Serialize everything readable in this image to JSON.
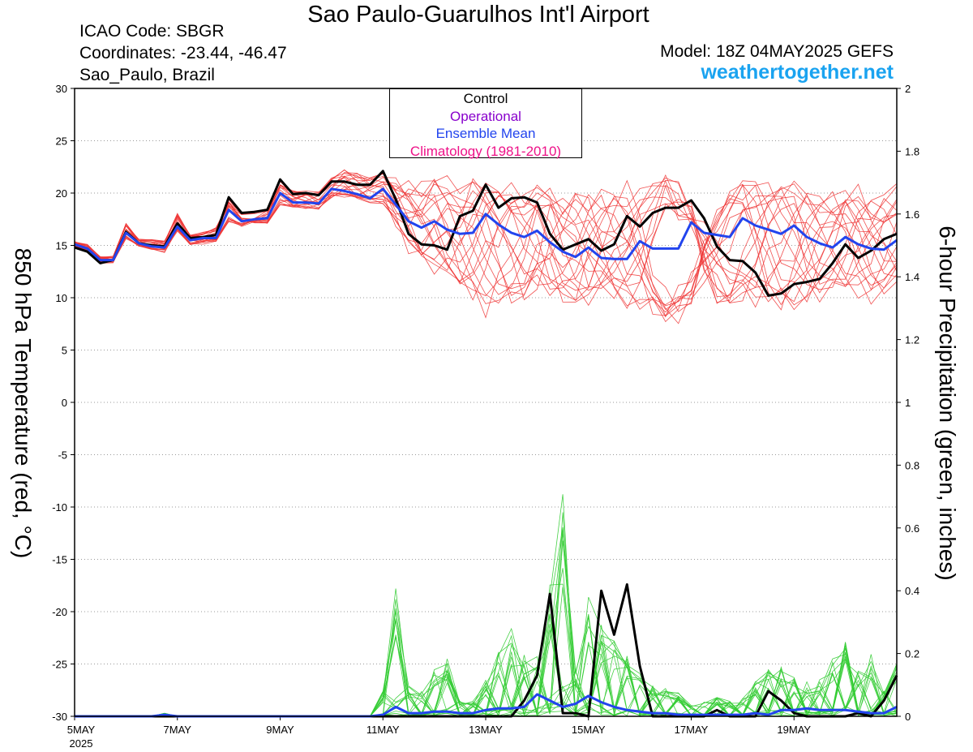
{
  "header": {
    "title": "Sao Paulo-Guarulhos Int'l Airport",
    "icao": "ICAO Code: SBGR",
    "coordinates": "Coordinates: -23.44, -46.47",
    "location": "Sao_Paulo, Brazil",
    "model": "Model: 18Z 04MAY2025 GEFS",
    "website": "weathertogether.net"
  },
  "legend": {
    "control": "Control",
    "operational": "Operational",
    "ensemble_mean": "Ensemble Mean",
    "climatology": "Climatology (1981-2010)"
  },
  "colors": {
    "control": "#000000",
    "operational": "#8800cc",
    "ensemble_mean": "#2244ee",
    "climatology": "#ee1188",
    "members_temp": "#ee3333",
    "members_precip": "#33cc33",
    "website": "#1aa3f0"
  },
  "chart_data": {
    "type": "line",
    "xlabel": "",
    "ylabel": "850 hPa Temperature (red, °C)",
    "y2label": "6-hour Precipitation (green, inches)",
    "x_start": "5MAY 2025",
    "x_step_hours": 6,
    "xlim_days": [
      5.0,
      21.0
    ],
    "ylim": [
      -30,
      30
    ],
    "y2lim": [
      0,
      2
    ],
    "x_ticks": [
      "5MAY",
      "7MAY",
      "9MAY",
      "11MAY",
      "13MAY",
      "15MAY",
      "17MAY",
      "19MAY"
    ],
    "x_year_label": "2025",
    "y_ticks": [
      30,
      25,
      20,
      15,
      10,
      5,
      0,
      -5,
      -10,
      -15,
      -20,
      -25,
      -30
    ],
    "y2_ticks": [
      "2",
      "1.8",
      "1.6",
      "1.4",
      "1.2",
      "1",
      "0.8",
      "0.6",
      "0.4",
      "0.2",
      "0"
    ],
    "grid": "horizontal dotted",
    "legend_position": "top-center",
    "series": [
      {
        "name": "Control",
        "role": "temperature",
        "color": "#000000",
        "width": 3,
        "values": [
          14.8,
          14.4,
          13.3,
          13.6,
          16.3,
          15.2,
          15.0,
          14.9,
          17.1,
          15.7,
          15.8,
          16.0,
          19.6,
          18.1,
          18.2,
          18.4,
          21.3,
          19.9,
          20.0,
          19.8,
          21.1,
          21.1,
          20.8,
          20.8,
          22.1,
          19.4,
          16.1,
          15.1,
          15.0,
          14.6,
          17.8,
          18.3,
          20.8,
          18.6,
          19.5,
          19.6,
          19.1,
          16.1,
          14.6,
          15.1,
          15.6,
          14.5,
          15.1,
          17.8,
          16.8,
          18.1,
          18.6,
          18.6,
          19.3,
          17.6,
          14.9,
          13.6,
          13.5,
          12.4,
          10.2,
          10.4,
          11.3,
          11.5,
          11.8,
          13.3,
          15.1,
          13.8,
          14.5,
          15.6,
          16.1
        ]
      },
      {
        "name": "Ensemble Mean",
        "role": "temperature",
        "color": "#2244ee",
        "width": 3,
        "values": [
          15.1,
          14.7,
          13.6,
          13.6,
          16.2,
          15.2,
          14.9,
          14.8,
          16.8,
          15.5,
          15.7,
          15.7,
          18.4,
          17.3,
          17.5,
          17.6,
          20.0,
          19.1,
          19.1,
          19.0,
          20.4,
          20.2,
          19.9,
          19.5,
          20.4,
          18.9,
          17.3,
          16.7,
          17.3,
          16.5,
          16.1,
          16.2,
          18.0,
          17.0,
          16.2,
          15.8,
          16.4,
          15.3,
          14.4,
          13.9,
          14.8,
          13.8,
          13.7,
          13.7,
          15.4,
          14.7,
          14.7,
          14.7,
          17.2,
          16.2,
          16.0,
          15.8,
          17.6,
          16.9,
          16.5,
          16.1,
          16.9,
          15.8,
          15.2,
          14.8,
          15.8,
          15.1,
          14.7,
          14.6,
          15.5
        ]
      },
      {
        "name": "Control",
        "role": "precipitation",
        "color": "#000000",
        "width": 3,
        "values": [
          0,
          0,
          0,
          0,
          0,
          0,
          0,
          0,
          0,
          0,
          0,
          0,
          0,
          0,
          0,
          0,
          0,
          0,
          0,
          0,
          0,
          0,
          0,
          0,
          0,
          0,
          0,
          0,
          0,
          0,
          0,
          0,
          0,
          0,
          0,
          0.05,
          0.13,
          0.39,
          0.01,
          0.01,
          0.0,
          0.4,
          0.26,
          0.42,
          0.16,
          0.0,
          0.0,
          0.0,
          0.0,
          0.0,
          0.02,
          0.0,
          0.0,
          0.0,
          0.08,
          0.05,
          0.01,
          0.0,
          0.0,
          0.0,
          0.0,
          0.01,
          0.0,
          0.05,
          0.13
        ]
      },
      {
        "name": "Ensemble Mean",
        "role": "precipitation",
        "color": "#2244ee",
        "width": 3,
        "values": [
          0,
          0,
          0,
          0,
          0,
          0,
          0,
          0.005,
          0,
          0,
          0,
          0,
          0,
          0,
          0,
          0,
          0,
          0,
          0,
          0,
          0,
          0,
          0,
          0,
          0.005,
          0.03,
          0.01,
          0.01,
          0.015,
          0.015,
          0.01,
          0.01,
          0.02,
          0.025,
          0.025,
          0.03,
          0.07,
          0.05,
          0.03,
          0.04,
          0.065,
          0.045,
          0.03,
          0.02,
          0.015,
          0.01,
          0.01,
          0.005,
          0.005,
          0.005,
          0.005,
          0.005,
          0.005,
          0.01,
          0.005,
          0.02,
          0.02,
          0.025,
          0.02,
          0.02,
          0.02,
          0.015,
          0.01,
          0.01,
          0.03
        ]
      }
    ],
    "members": {
      "count": 20,
      "temperature_color": "#ee3333",
      "precipitation_color": "#33cc33",
      "temperature_envelope_min": [
        14.9,
        14.3,
        13.3,
        13.3,
        15.6,
        14.9,
        14.5,
        14.3,
        16.1,
        15.0,
        15.1,
        15.2,
        17.2,
        16.7,
        16.9,
        16.9,
        18.7,
        18.5,
        18.5,
        18.4,
        19.4,
        19.4,
        19.1,
        18.9,
        18.7,
        16.5,
        14.2,
        12.9,
        12.0,
        11.1,
        10.3,
        9.1,
        8.0,
        8.6,
        9.0,
        9.5,
        9.9,
        9.5,
        8.9,
        8.4,
        8.9,
        9.0,
        9.5,
        8.5,
        7.8,
        7.3,
        7.0,
        6.8,
        6.5,
        7.3,
        7.9,
        8.4,
        9.0,
        8.9,
        8.9,
        8.4,
        8.5,
        8.9,
        9.2,
        9.5,
        9.6,
        9.4,
        9.3,
        9.5,
        10.1
      ],
      "temperature_envelope_max": [
        15.4,
        15.1,
        14.0,
        14.0,
        17.2,
        15.6,
        15.6,
        15.6,
        18.1,
        16.1,
        16.3,
        16.8,
        19.7,
        18.3,
        18.3,
        18.6,
        21.3,
        20.3,
        20.3,
        20.1,
        21.5,
        22.3,
        22.0,
        21.7,
        22.1,
        21.5,
        21.2,
        21.2,
        22.1,
        21.8,
        20.6,
        21.7,
        22.3,
        22.0,
        21.0,
        20.4,
        21.5,
        21.2,
        19.9,
        20.3,
        20.7,
        20.8,
        20.5,
        21.5,
        21.8,
        21.2,
        21.9,
        21.6,
        22.1,
        21.1,
        20.5,
        20.5,
        21.7,
        21.7,
        21.5,
        21.2,
        21.3,
        20.8,
        20.7,
        20.5,
        21.7,
        21.1,
        20.0,
        19.9,
        21.2
      ],
      "precipitation_envelope_max": [
        0,
        0,
        0,
        0,
        0,
        0,
        0,
        0.01,
        0,
        0,
        0,
        0,
        0,
        0,
        0,
        0,
        0,
        0,
        0,
        0,
        0,
        0,
        0,
        0,
        0.08,
        0.42,
        0.1,
        0.08,
        0.15,
        0.19,
        0.05,
        0.05,
        0.12,
        0.21,
        0.28,
        0.2,
        0.2,
        0.44,
        0.73,
        0.15,
        0.38,
        0.3,
        0.25,
        0.2,
        0.15,
        0.1,
        0.09,
        0.08,
        0.04,
        0.05,
        0.06,
        0.05,
        0.06,
        0.12,
        0.15,
        0.16,
        0.13,
        0.11,
        0.12,
        0.2,
        0.24,
        0.15,
        0.2,
        0.1,
        0.17
      ]
    },
    "grid_enabled": true
  }
}
